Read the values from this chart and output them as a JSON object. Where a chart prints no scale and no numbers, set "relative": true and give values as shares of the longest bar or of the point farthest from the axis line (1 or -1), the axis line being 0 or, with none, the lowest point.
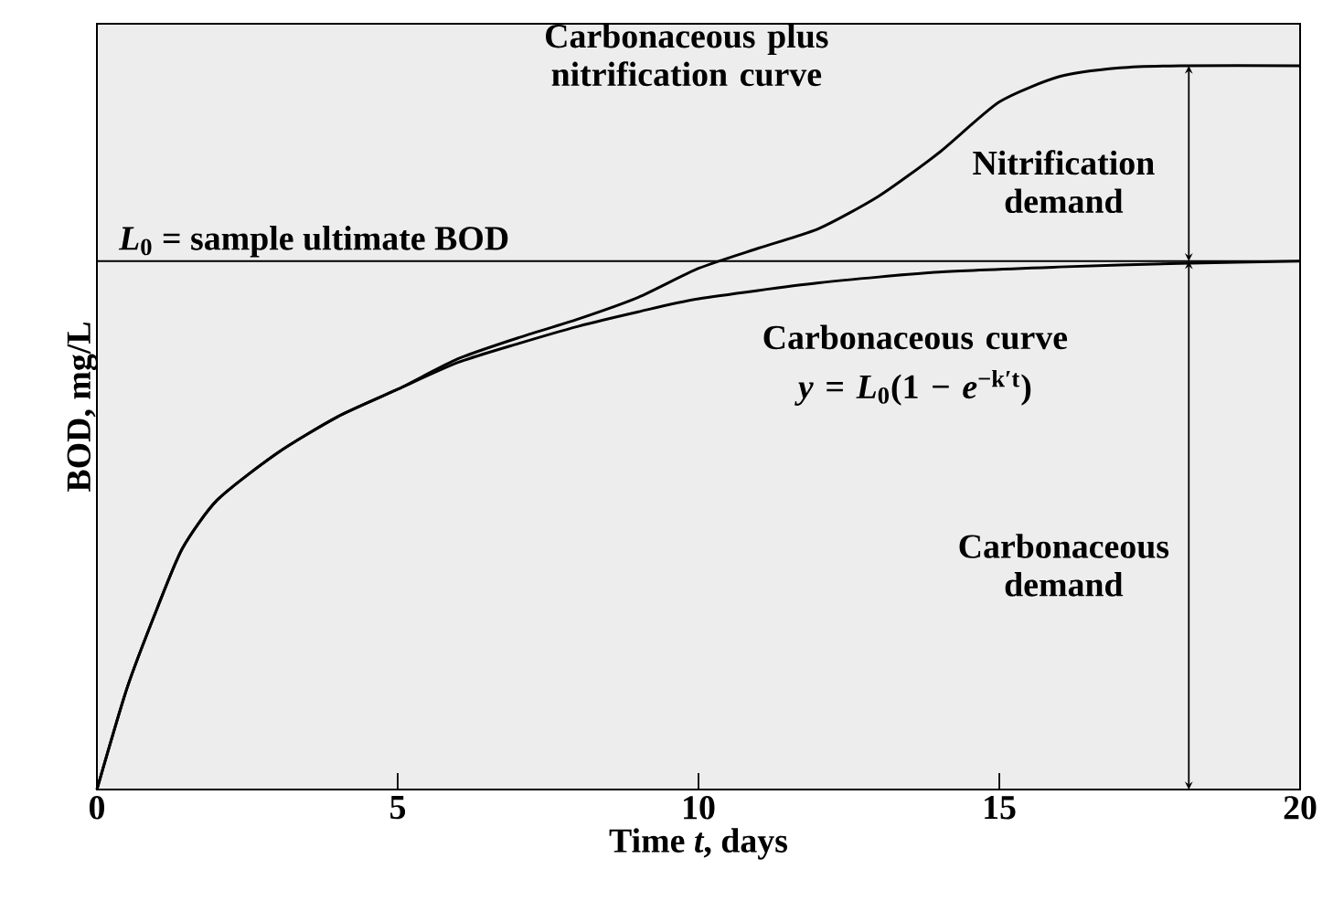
{
  "chart_data": {
    "type": "line",
    "relative": true,
    "xlabel": "Time *t*, days",
    "ylabel": "BOD, mg/L",
    "xlim": [
      0,
      20
    ],
    "xticks": [
      0,
      5,
      10,
      15,
      20
    ],
    "tick_labels": "x",
    "marker": "none",
    "line_style": "solid",
    "series": [
      {
        "color": "#000000",
        "x": [
          0,
          0.5,
          1,
          1.42,
          2,
          3,
          4,
          5,
          6,
          7,
          8,
          9,
          10,
          12,
          14,
          16,
          18,
          20
        ],
        "values": [
          0,
          0.14,
          0.25,
          0.333,
          0.4,
          0.465,
          0.515,
          0.553,
          0.59,
          0.616,
          0.64,
          0.66,
          0.678,
          0.7,
          0.715,
          0.722,
          0.727,
          0.73
        ]
      },
      {
        "color": "#000000",
        "x": [
          0,
          0.5,
          1,
          1.42,
          2,
          3,
          4,
          5,
          6,
          7,
          8,
          9,
          10,
          11,
          12,
          13,
          14,
          15,
          16,
          17,
          18,
          20
        ],
        "values": [
          0,
          0.14,
          0.25,
          0.333,
          0.4,
          0.465,
          0.515,
          0.553,
          0.595,
          0.624,
          0.65,
          0.68,
          0.72,
          0.748,
          0.775,
          0.82,
          0.88,
          0.95,
          0.985,
          0.997,
          1,
          1
        ]
      }
    ],
    "ref_lines": [
      {
        "axis": "y",
        "value": 0.73,
        "label": "*L*$_{0}$ = sample ultimate BOD"
      }
    ],
    "annotations": [
      "Carbonaceous plus nitrification curve",
      "Carbonaceous curve",
      "*y* = *L*$_{0}$(1 − *e*$^{−k′t}$)",
      "Nitrification demand",
      "Carbonaceous demand"
    ]
  }
}
